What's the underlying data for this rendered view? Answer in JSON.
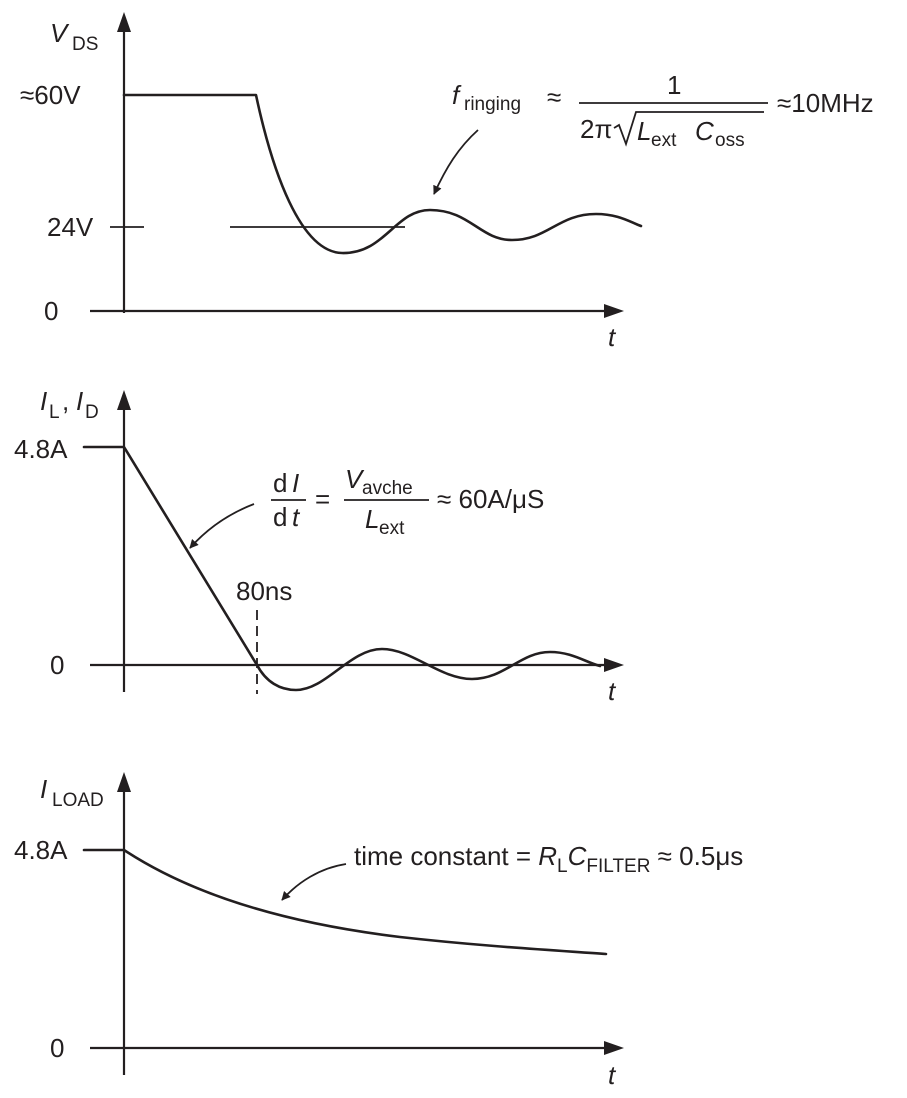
{
  "panel1": {
    "y_axis": {
      "symbol": "V",
      "sub": "DS"
    },
    "x_axis": "t",
    "ticks": {
      "high": "≈60V",
      "mid": "24V",
      "zero": "0"
    },
    "formula": {
      "lhs": "f",
      "lhs_sub": "ringing",
      "approx1": "≈",
      "numerator": "1",
      "den_prefix": "2π",
      "den_L": "L",
      "den_L_sub": "ext",
      "den_C": "C",
      "den_C_sub": "oss",
      "result": "≈10MHz"
    }
  },
  "panel2": {
    "y_axis": {
      "sym1": "I",
      "sub1": "L",
      "sep": ",",
      "sym2": "I",
      "sub2": "D"
    },
    "x_axis": "t",
    "ticks": {
      "high": "4.8A",
      "zero": "0"
    },
    "formula": {
      "d1": "d",
      "I": "I",
      "d2": "d",
      "t": "t",
      "eq": "=",
      "V": "V",
      "V_sub": "avche",
      "L": "L",
      "L_sub": "ext",
      "result": "≈ 60A/μS"
    },
    "marker": "80ns"
  },
  "panel3": {
    "y_axis": {
      "symbol": "I",
      "sub": "LOAD"
    },
    "x_axis": "t",
    "ticks": {
      "high": "4.8A",
      "zero": "0"
    },
    "formula": {
      "text": "time constant = ",
      "R": "R",
      "R_sub": "L",
      "C": "C",
      "C_sub": "FILTER",
      "result": " ≈ 0.5μs"
    }
  }
}
